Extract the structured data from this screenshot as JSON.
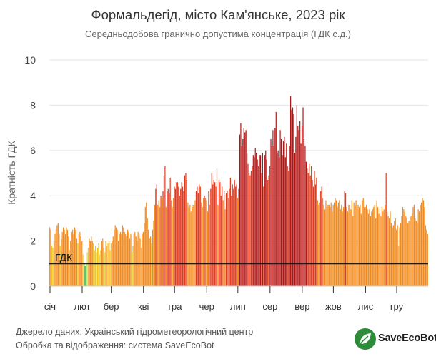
{
  "title": "Формальдегід, місто Кам'янське, 2023 рік",
  "subtitle": "Середньодобова гранично допустима концентрація (ГДК с.д.)",
  "footer": {
    "source": "Джерело даних: Український гідрометеорологічний центр",
    "processing": "Обробка та відображення: система SaveEcoBot"
  },
  "logo": {
    "text": "SaveEcoBot",
    "icon": "leaf-logo-icon",
    "color": "#2e8b3a"
  },
  "colors": {
    "green": "#3aa43a",
    "light_yellow": "#e8d84a",
    "yellow": "#f0c419",
    "orange": "#f08a1e",
    "red": "#e03a1e",
    "dark_red": "#b01515",
    "threshold": "#1a1a1a",
    "grid": "#e6e6e6"
  },
  "chart_data": {
    "type": "bar",
    "ylabel": "Кратність ГДК",
    "ylim": [
      0,
      10
    ],
    "yticks": [
      0,
      2,
      4,
      6,
      8,
      10
    ],
    "grid": true,
    "threshold": {
      "label": "ГДК",
      "value": 1
    },
    "months": [
      "січ",
      "лют",
      "бер",
      "кві",
      "тра",
      "чер",
      "лип",
      "сер",
      "вер",
      "жов",
      "лис",
      "гру"
    ],
    "days_per_month": [
      31,
      28,
      31,
      30,
      31,
      30,
      31,
      31,
      30,
      31,
      30,
      31
    ],
    "values": [
      2.6,
      2.5,
      1.8,
      1.7,
      2.0,
      2.3,
      2.5,
      2.7,
      2.8,
      2.3,
      1.8,
      2.1,
      2.4,
      2.6,
      2.5,
      2.3,
      2.6,
      2.5,
      2.2,
      1.6,
      2.0,
      2.4,
      2.5,
      2.3,
      2.6,
      2.5,
      2.1,
      1.9,
      2.3,
      2.4,
      2.2,
      2.0,
      1.4,
      1.0,
      0.9,
      1.0,
      1.5,
      1.7,
      2.1,
      2.0,
      2.2,
      2.0,
      1.9,
      1.6,
      1.8,
      1.5,
      1.7,
      1.9,
      1.4,
      1.6,
      2.0,
      2.1,
      1.7,
      1.5,
      2.0,
      1.8,
      1.9,
      2.0,
      1.6,
      1.9,
      2.0,
      2.2,
      2.5,
      2.7,
      2.6,
      2.5,
      2.0,
      2.3,
      2.4,
      2.3,
      2.7,
      2.6,
      2.4,
      2.3,
      2.2,
      2.5,
      2.4,
      2.1,
      2.3,
      1.5,
      1.8,
      2.3,
      2.4,
      2.2,
      2.0,
      2.4,
      2.3,
      2.1,
      1.7,
      2.3,
      2.4,
      2.8,
      3.5,
      3.7,
      3.0,
      2.5,
      2.1,
      2.2,
      1.9,
      2.5,
      2.9,
      3.6,
      4.3,
      4.5,
      3.6,
      3.8,
      3.5,
      4.0,
      3.9,
      4.2,
      4.9,
      5.3,
      3.5,
      4.2,
      4.3,
      4.1,
      4.8,
      3.8,
      3.5,
      3.9,
      4.4,
      4.3,
      4.6,
      4.6,
      4.4,
      4.0,
      4.3,
      4.6,
      4.4,
      4.2,
      4.9,
      5.0,
      4.7,
      3.7,
      3.5,
      3.6,
      3.3,
      3.5,
      3.6,
      3.6,
      3.8,
      4.2,
      4.4,
      4.1,
      4.5,
      4.4,
      3.7,
      3.5,
      3.9,
      4.0,
      3.9,
      3.8,
      3.3,
      4.2,
      3.6,
      4.3,
      5.0,
      4.5,
      4.7,
      4.6,
      4.4,
      5.2,
      3.6,
      4.7,
      4.6,
      4.0,
      4.4,
      3.8,
      4.2,
      3.4,
      4.1,
      4.2,
      3.9,
      4.3,
      4.8,
      4.0,
      4.5,
      4.3,
      4.7,
      4.4,
      4.5,
      3.9,
      4.3,
      6.7,
      7.2,
      6.2,
      6.5,
      7.0,
      6.8,
      6.9,
      5.9,
      5.4,
      5.0,
      4.9,
      5.1,
      5.3,
      5.8,
      5.7,
      6.1,
      5.9,
      5.6,
      5.3,
      5.8,
      5.8,
      5.0,
      5.9,
      4.4,
      5.8,
      6.0,
      5.6,
      4.7,
      4.9,
      5.3,
      6.5,
      6.2,
      6.9,
      6.2,
      7.0,
      7.7,
      5.9,
      6.0,
      5.7,
      6.9,
      6.5,
      5.8,
      6.4,
      6.6,
      5.7,
      6.3,
      5.3,
      5.1,
      6.2,
      8.4,
      7.8,
      7.9,
      7.6,
      5.9,
      6.6,
      8.0,
      7.1,
      6.9,
      7.3,
      6.3,
      7.1,
      7.9,
      6.5,
      6.2,
      5.5,
      5.2,
      5.0,
      5.4,
      4.9,
      5.3,
      4.7,
      4.4,
      5.1,
      4.5,
      4.8,
      3.8,
      3.6,
      3.7,
      4.2,
      4.4,
      3.9,
      3.6,
      3.4,
      3.8,
      3.5,
      3.6,
      3.6,
      3.5,
      3.7,
      3.3,
      3.6,
      3.7,
      3.9,
      3.8,
      3.5,
      3.7,
      3.8,
      3.4,
      3.6,
      3.3,
      3.5,
      4.2,
      4.1,
      3.5,
      3.3,
      3.6,
      3.6,
      3.4,
      3.8,
      3.1,
      3.7,
      3.6,
      3.8,
      3.4,
      3.6,
      3.5,
      3.6,
      3.2,
      3.8,
      3.9,
      3.5,
      3.5,
      3.6,
      3.4,
      3.2,
      3.4,
      3.1,
      3.3,
      3.4,
      3.5,
      3.6,
      3.0,
      3.8,
      3.5,
      3.2,
      3.4,
      3.1,
      3.5,
      3.3,
      3.4,
      3.6,
      5.0,
      3.3,
      3.1,
      3.0,
      3.3,
      2.8,
      2.6,
      2.7,
      2.9,
      3.0,
      2.5,
      2.7,
      1.8,
      2.6,
      2.8,
      3.1,
      3.5,
      3.4,
      3.3,
      3.1,
      3.0,
      2.8,
      2.9,
      3.0,
      3.1,
      3.2,
      3.5,
      3.6,
      3.0,
      2.9,
      2.8,
      3.4,
      3.3,
      3.6,
      3.7,
      3.9,
      3.8,
      3.5,
      2.7,
      2.5,
      2.3
    ]
  }
}
